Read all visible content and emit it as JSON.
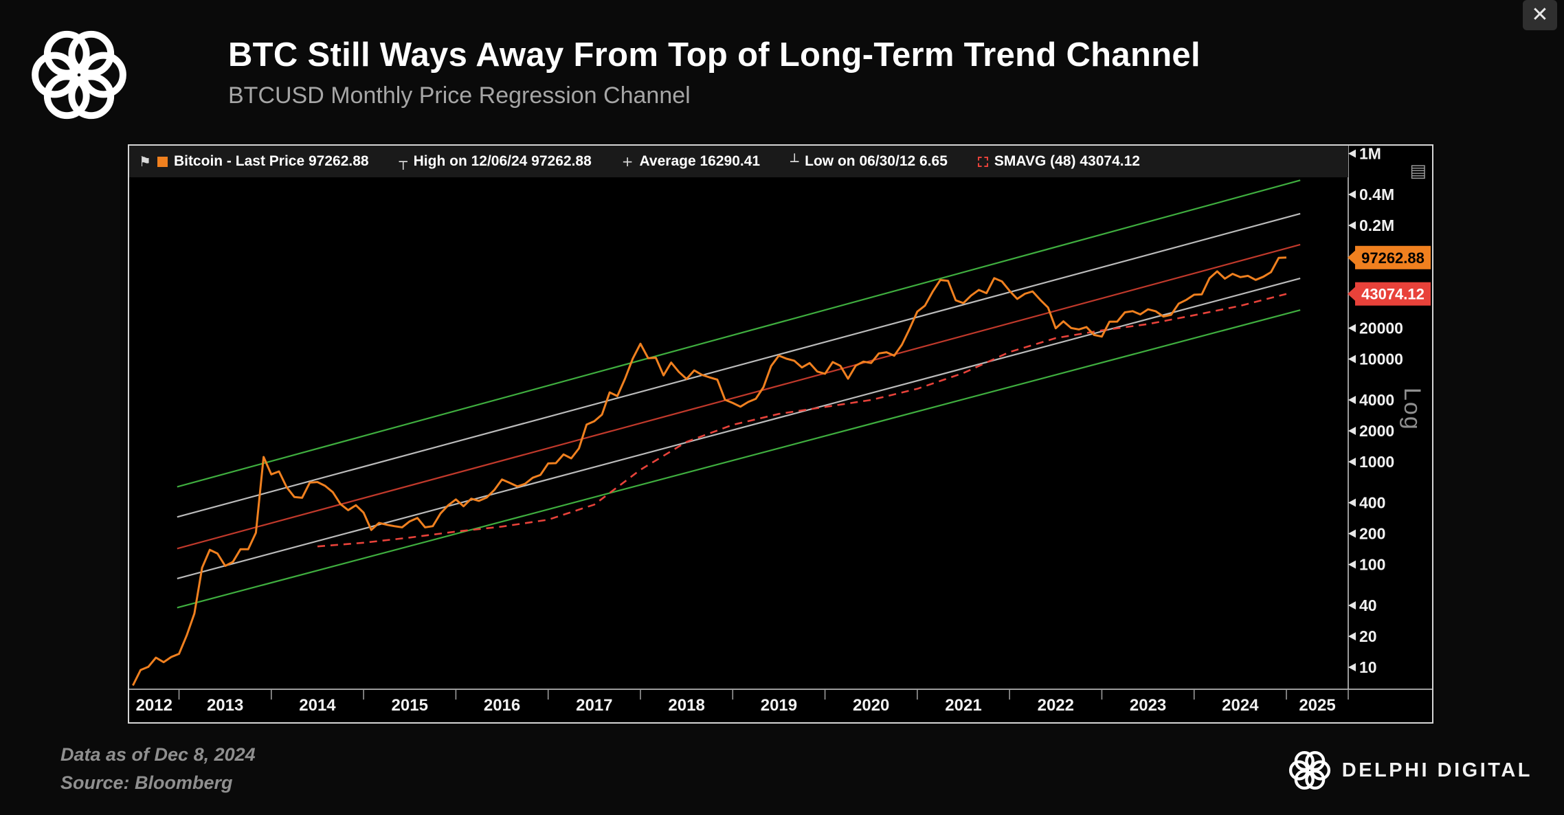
{
  "window": {
    "close_label": "✕"
  },
  "header": {
    "title": "BTC Still Ways Away From Top of Long-Term Trend Channel",
    "subtitle": "BTCUSD Monthly Price Regression Channel"
  },
  "footer": {
    "data_as_of": "Data as of Dec 8, 2024",
    "source": "Source: Bloomberg",
    "brand": "DELPHI DIGITAL"
  },
  "chart": {
    "menu_icon": "▤",
    "log_label": "Log",
    "legend": [
      {
        "icons": [
          "pin",
          "swatch"
        ],
        "label": "Bitcoin - Last Price 97262.88"
      },
      {
        "icons": [
          "high"
        ],
        "label": "High on 12/06/24 97262.88"
      },
      {
        "icons": [
          "avg"
        ],
        "label": "Average 16290.41"
      },
      {
        "icons": [
          "low"
        ],
        "label": "Low on 06/30/12 6.65"
      },
      {
        "icons": [
          "smavg"
        ],
        "label": "SMAVG (48) 43074.12"
      }
    ]
  },
  "chart_data": {
    "type": "line",
    "title": "BTCUSD Monthly Price Regression Channel",
    "legend_position": "top",
    "x_axis": {
      "start_year_fraction": 2012.46,
      "end_year_fraction": 2025.67,
      "tick_labels": [
        "2012",
        "2013",
        "2014",
        "2015",
        "2016",
        "2017",
        "2018",
        "2019",
        "2020",
        "2021",
        "2022",
        "2023",
        "2024",
        "2025"
      ]
    },
    "y_axis": {
      "scale": "log",
      "ylim": [
        8,
        1200000
      ],
      "ticks": [
        {
          "label": "1M",
          "value": 1000000
        },
        {
          "label": "0.4M",
          "value": 400000
        },
        {
          "label": "0.2M",
          "value": 200000
        },
        {
          "label": "20000",
          "value": 20000
        },
        {
          "label": "10000",
          "value": 10000
        },
        {
          "label": "4000",
          "value": 4000
        },
        {
          "label": "2000",
          "value": 2000
        },
        {
          "label": "1000",
          "value": 1000
        },
        {
          "label": "400",
          "value": 400
        },
        {
          "label": "200",
          "value": 200
        },
        {
          "label": "100",
          "value": 100
        },
        {
          "label": "40",
          "value": 40
        },
        {
          "label": "20",
          "value": 20
        },
        {
          "label": "10",
          "value": 10
        }
      ]
    },
    "price_series": {
      "name": "Bitcoin - Last Price",
      "color": "#f0801f",
      "start": "2012-06",
      "interval": "monthly",
      "values": [
        6.65,
        9.4,
        10.1,
        12.4,
        11.2,
        12.6,
        13.5,
        20.4,
        33.4,
        93,
        139,
        128,
        97,
        106,
        141,
        141,
        204,
        1113,
        754,
        806,
        565,
        454,
        446,
        627,
        635,
        583,
        506,
        387,
        338,
        378,
        320,
        217,
        254,
        244,
        236,
        230,
        263,
        284,
        230,
        236,
        314,
        377,
        430,
        369,
        437,
        416,
        449,
        531,
        672,
        624,
        575,
        610,
        700,
        745,
        964,
        970,
        1180,
        1080,
        1350,
        2300,
        2480,
        2875,
        4735,
        4360,
        6450,
        10100,
        14100,
        10200,
        10300,
        6940,
        9240,
        7500,
        6400,
        7750,
        7020,
        6630,
        6300,
        4020,
        3740,
        3440,
        3820,
        4100,
        5320,
        8560,
        10800,
        10080,
        9630,
        8290,
        9150,
        7550,
        7190,
        9350,
        8600,
        6440,
        8630,
        9450,
        9140,
        11350,
        11650,
        10780,
        13800,
        19700,
        29000,
        33100,
        45200,
        58800,
        57750,
        37300,
        35040,
        41500,
        47100,
        43800,
        61300,
        57000,
        46200,
        38480,
        43200,
        45540,
        37650,
        31800,
        19925,
        23300,
        20050,
        19430,
        20490,
        17170,
        16540,
        23130,
        23140,
        28480,
        29270,
        27220,
        30480,
        29230,
        25930,
        26970,
        34660,
        37710,
        42280,
        42580,
        61200,
        71330,
        60640,
        67530,
        62680,
        64620,
        58970,
        63330,
        70220,
        96450,
        97262.88
      ]
    },
    "smavg_series": {
      "name": "SMAVG (48)",
      "color": "#e8423a",
      "style": "dashed",
      "points": [
        {
          "x": 2014.5,
          "v": 150
        },
        {
          "x": 2015.0,
          "v": 163
        },
        {
          "x": 2015.5,
          "v": 183
        },
        {
          "x": 2016.0,
          "v": 209
        },
        {
          "x": 2016.5,
          "v": 234
        },
        {
          "x": 2017.0,
          "v": 273
        },
        {
          "x": 2017.5,
          "v": 383
        },
        {
          "x": 2018.0,
          "v": 836
        },
        {
          "x": 2018.5,
          "v": 1563
        },
        {
          "x": 2019.0,
          "v": 2290
        },
        {
          "x": 2019.5,
          "v": 2925
        },
        {
          "x": 2020.0,
          "v": 3420
        },
        {
          "x": 2020.5,
          "v": 4000
        },
        {
          "x": 2021.0,
          "v": 5130
        },
        {
          "x": 2021.5,
          "v": 7310
        },
        {
          "x": 2022.0,
          "v": 11700
        },
        {
          "x": 2022.5,
          "v": 16000
        },
        {
          "x": 2023.0,
          "v": 19000
        },
        {
          "x": 2023.5,
          "v": 21900
        },
        {
          "x": 2024.0,
          "v": 26700
        },
        {
          "x": 2024.5,
          "v": 33000
        },
        {
          "x": 2025.0,
          "v": 43074.12
        }
      ]
    },
    "channel": {
      "x_start": 2012.98,
      "x_end": 2025.15,
      "lines": [
        {
          "name": "upper-band",
          "color": "#3fae3f",
          "start_value": 570,
          "end_value": 550000
        },
        {
          "name": "upper-inner",
          "color": "#bbbbbb",
          "start_value": 290,
          "end_value": 260000
        },
        {
          "name": "regression-mid",
          "color": "#c0392b",
          "start_value": 143,
          "end_value": 130000
        },
        {
          "name": "lower-inner",
          "color": "#bbbbbb",
          "start_value": 73,
          "end_value": 61000
        },
        {
          "name": "lower-band",
          "color": "#3fae3f",
          "start_value": 38,
          "end_value": 30000
        }
      ]
    },
    "badges": [
      {
        "label": "97262.88",
        "value": 97262.88,
        "bg": "#f0801f",
        "fg": "#000000"
      },
      {
        "label": "43074.12",
        "value": 43074.12,
        "bg": "#e8423a",
        "fg": "#ffffff"
      }
    ],
    "stats": {
      "last_price": 97262.88,
      "high_date": "12/06/24",
      "high": 97262.88,
      "average": 16290.41,
      "low_date": "06/30/12",
      "low": 6.65,
      "smavg_48": 43074.12
    }
  }
}
